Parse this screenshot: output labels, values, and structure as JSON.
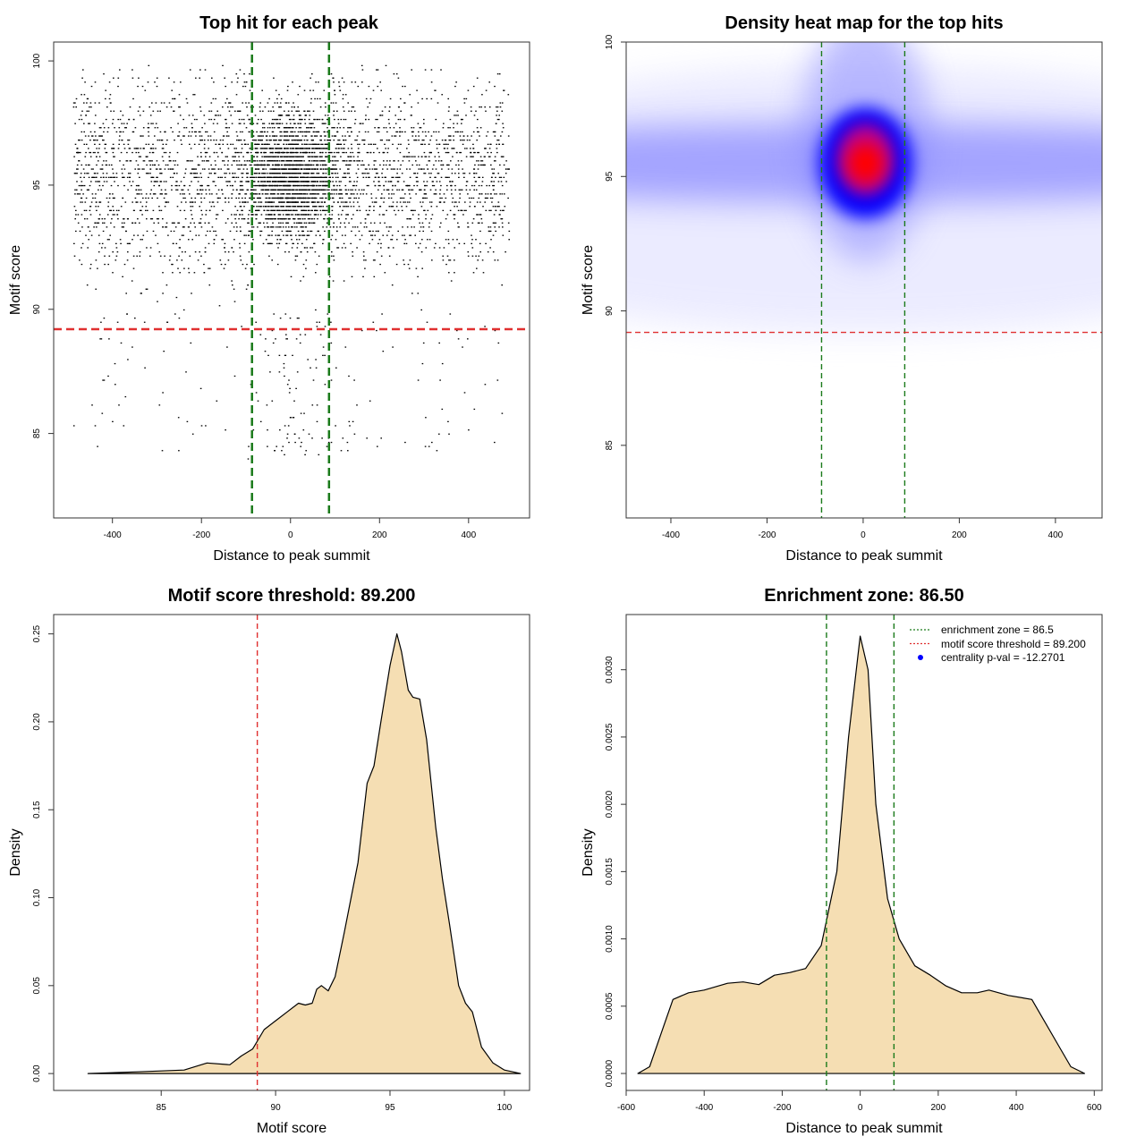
{
  "chart_data": [
    {
      "type": "scatter",
      "title": "Top hit for each peak",
      "xlabel": "Distance to peak summit",
      "ylabel": "Motif score",
      "xlim": [
        -532,
        537
      ],
      "ylim": [
        81.6,
        100.76
      ],
      "xticks": [
        -400,
        -200,
        0,
        200,
        400
      ],
      "yticks": [
        85,
        90,
        95,
        100
      ],
      "vlines": [
        {
          "x": -86.5,
          "color": "#1a7a1a",
          "style": "dashed"
        },
        {
          "x": 86.5,
          "color": "#1a7a1a",
          "style": "dashed"
        }
      ],
      "hlines": [
        {
          "y": 89.2,
          "color": "#e03030",
          "style": "dashed"
        }
      ],
      "point_color": "#000000",
      "grid": false
    },
    {
      "type": "heatmap",
      "title": "Density heat map for the top hits",
      "xlabel": "Distance to peak summit",
      "ylabel": "Motif score",
      "xlim": [
        -493,
        497
      ],
      "ylim": [
        82.3,
        100
      ],
      "xticks": [
        -400,
        -200,
        0,
        200,
        400
      ],
      "yticks": [
        85,
        90,
        95,
        100
      ],
      "peak": {
        "x": 5,
        "y": 95.5
      },
      "colors": [
        "#ffffff",
        "#0000ff",
        "#ff0000"
      ],
      "vlines": [
        {
          "x": -86.5,
          "color": "#1a7a1a",
          "style": "dashed"
        },
        {
          "x": 86.5,
          "color": "#1a7a1a",
          "style": "dashed"
        }
      ],
      "hlines": [
        {
          "y": 89.2,
          "color": "#e03030",
          "style": "dashed"
        }
      ]
    },
    {
      "type": "area",
      "title": "Motif score threshold: 89.200",
      "xlabel": "Motif score",
      "ylabel": "Density",
      "xlim": [
        80.3,
        101.1
      ],
      "ylim": [
        -0.0096,
        0.261
      ],
      "xticks": [
        85,
        90,
        95,
        100
      ],
      "yticks": [
        0.0,
        0.05,
        0.1,
        0.15,
        0.2,
        0.25
      ],
      "ytick_labels": [
        "0.00",
        "0.05",
        "0.10",
        "0.15",
        "0.20",
        "0.25"
      ],
      "fill": "#f5deb3",
      "x": [
        81.8,
        84,
        86,
        87,
        88,
        88.5,
        89,
        89.5,
        90,
        90.5,
        91,
        91.3,
        91.6,
        91.8,
        92,
        92.3,
        92.6,
        93,
        93.3,
        93.6,
        94,
        94.3,
        94.6,
        95,
        95.3,
        95.5,
        95.8,
        96,
        96.3,
        96.6,
        97,
        97.3,
        97.6,
        98,
        98.3,
        98.6,
        99,
        99.5,
        100,
        100.7
      ],
      "y": [
        0,
        0.001,
        0.002,
        0.006,
        0.005,
        0.01,
        0.014,
        0.025,
        0.03,
        0.035,
        0.04,
        0.039,
        0.04,
        0.048,
        0.05,
        0.047,
        0.055,
        0.08,
        0.1,
        0.12,
        0.165,
        0.175,
        0.2,
        0.232,
        0.25,
        0.24,
        0.218,
        0.214,
        0.213,
        0.19,
        0.14,
        0.11,
        0.085,
        0.05,
        0.04,
        0.035,
        0.015,
        0.006,
        0.002,
        0
      ],
      "vlines": [
        {
          "x": 89.2,
          "color": "#e03030",
          "style": "dashed"
        }
      ]
    },
    {
      "type": "area",
      "title": "Enrichment zone: 86.50",
      "xlabel": "Distance to peak summit",
      "ylabel": "Density",
      "xlim": [
        -600,
        620
      ],
      "ylim": [
        -0.000126,
        0.00341
      ],
      "xticks": [
        -600,
        -400,
        -200,
        0,
        200,
        400,
        600
      ],
      "yticks": [
        0,
        0.0005,
        0.001,
        0.0015,
        0.002,
        0.0025,
        0.003
      ],
      "ytick_labels": [
        "0.0000",
        "0.0005",
        "0.0010",
        "0.0015",
        "0.0020",
        "0.0025",
        "0.0030"
      ],
      "fill": "#f5deb3",
      "x": [
        -570,
        -540,
        -510,
        -480,
        -440,
        -400,
        -340,
        -300,
        -260,
        -220,
        -180,
        -140,
        -100,
        -60,
        -30,
        0,
        20,
        40,
        70,
        100,
        140,
        180,
        220,
        260,
        300,
        330,
        380,
        440,
        470,
        510,
        540,
        575
      ],
      "y": [
        0,
        5e-05,
        0.0003,
        0.00055,
        0.0006,
        0.00062,
        0.00067,
        0.00068,
        0.00066,
        0.00073,
        0.00075,
        0.00078,
        0.00095,
        0.0015,
        0.0025,
        0.00325,
        0.003,
        0.002,
        0.0013,
        0.001,
        0.0008,
        0.00073,
        0.00065,
        0.0006,
        0.0006,
        0.00062,
        0.00058,
        0.00055,
        0.0004,
        0.0002,
        5e-05,
        0
      ],
      "vlines": [
        {
          "x": -86.5,
          "color": "#1a7a1a",
          "style": "dashed"
        },
        {
          "x": 86.5,
          "color": "#1a7a1a",
          "style": "dashed"
        }
      ],
      "legend": {
        "position": "top-right",
        "entries": [
          {
            "label": "enrichment zone = 86.5",
            "color": "#1a7a1a",
            "marker": "dotted-line"
          },
          {
            "label": "motif score threshold = 89.200",
            "color": "#e03030",
            "marker": "dotted-line"
          },
          {
            "label": "centrality p-val = -12.2701",
            "color": "#0000ff",
            "marker": "dot"
          }
        ]
      }
    }
  ]
}
